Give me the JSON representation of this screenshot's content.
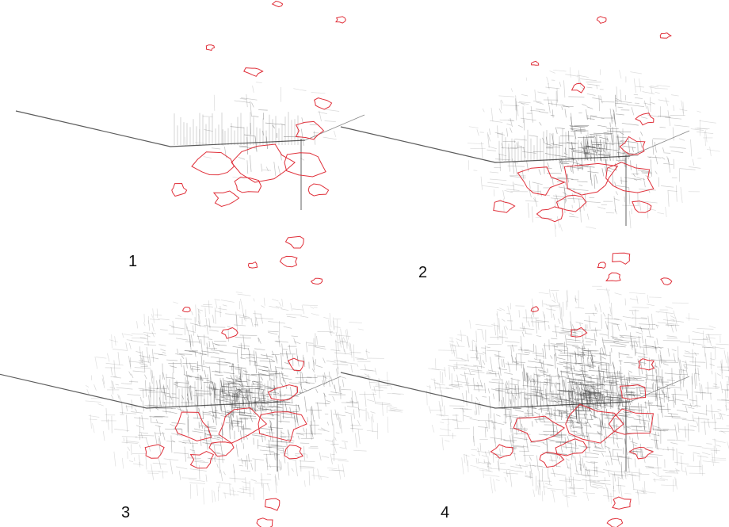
{
  "panels": [
    {
      "label": "1"
    },
    {
      "label": "2"
    },
    {
      "label": "3"
    },
    {
      "label": "4"
    }
  ]
}
